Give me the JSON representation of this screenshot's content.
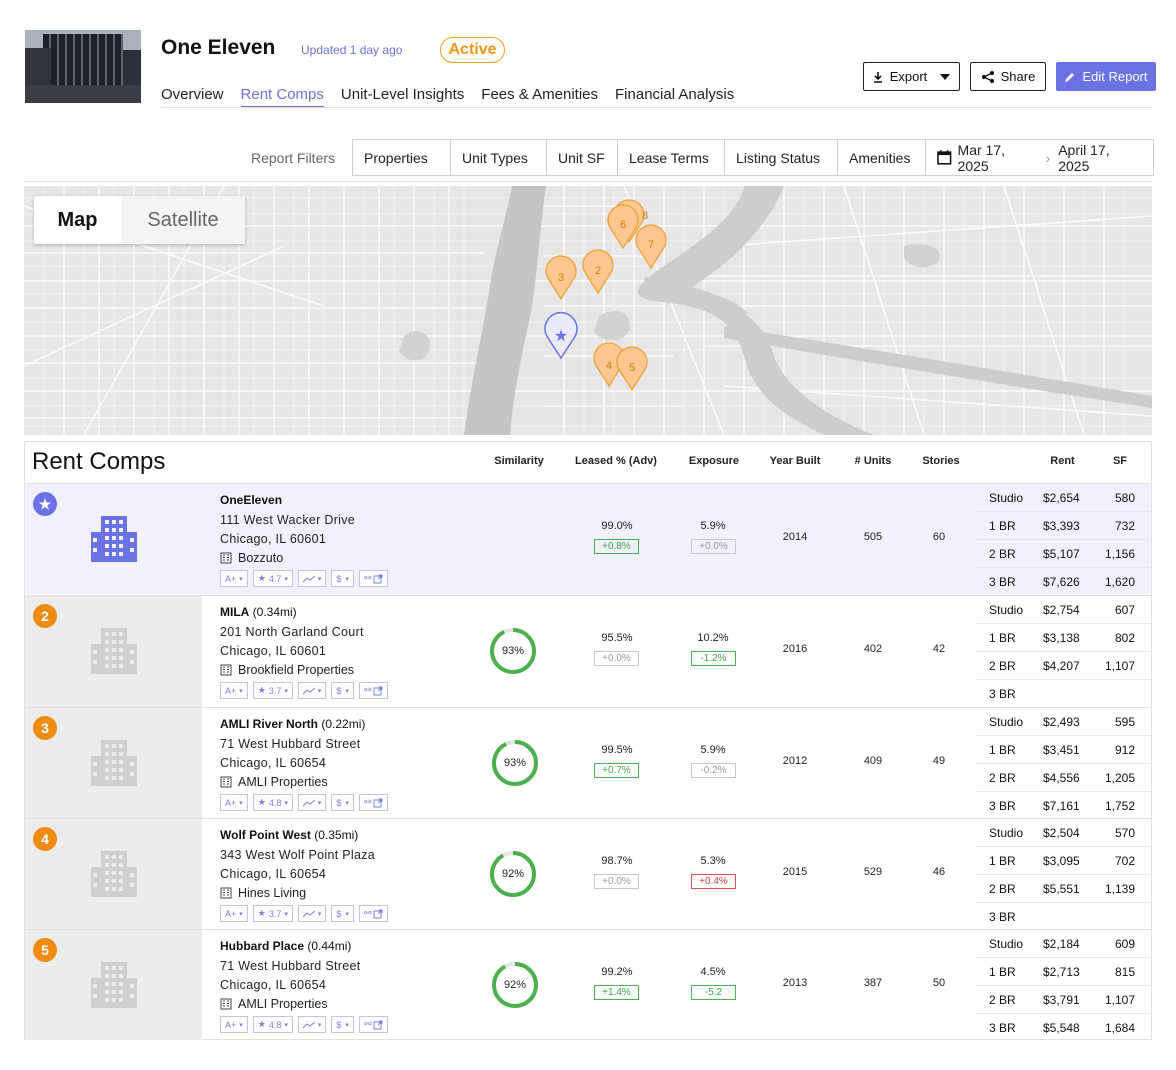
{
  "header": {
    "title": "One Eleven",
    "updated": "Updated 1 day ago",
    "status": "Active",
    "tabs": [
      "Overview",
      "Rent Comps",
      "Unit-Level Insights",
      "Fees & Amenities",
      "Financial Analysis"
    ],
    "selected_tab": "Rent Comps",
    "buttons": {
      "export": "Export",
      "share": "Share",
      "edit": "Edit Report"
    }
  },
  "filters": {
    "label": "Report Filters",
    "items": [
      "Properties",
      "Unit Types",
      "Unit SF",
      "Lease Terms",
      "Listing Status",
      "Amenities"
    ],
    "date_start": "Mar 17, 2025",
    "date_end": "April 17, 2025"
  },
  "map": {
    "modes": [
      "Map",
      "Satellite"
    ],
    "selected": "Map",
    "markers": [
      "6",
      "8",
      "7",
      "3",
      "2",
      "4",
      "5"
    ]
  },
  "rent_comps": {
    "title": "Rent Comps",
    "columns": [
      "Similarity",
      "Leased % (Adv)",
      "Exposure",
      "Year Built",
      "# Units",
      "Stories",
      "Rent",
      "SF"
    ],
    "rows": [
      {
        "badge": "★",
        "name": "OneEleven",
        "distance": "",
        "street": "111 West Wacker Drive",
        "city": "Chicago, IL 60601",
        "manager": "Bozzuto",
        "grade": "A+",
        "rating": "4.7",
        "similarity": "",
        "leased": "99.0%",
        "leased_delta": "+0.8%",
        "exposure": "5.9%",
        "exposure_delta": "+0.0%",
        "year": "2014",
        "units": "505",
        "stories": "60",
        "rents": [
          [
            "Studio",
            "$2,654",
            "580"
          ],
          [
            "1 BR",
            "$3,393",
            "732"
          ],
          [
            "2 BR",
            "$5,107",
            "1,156"
          ],
          [
            "3 BR",
            "$7,626",
            "1,620"
          ]
        ]
      },
      {
        "badge": "2",
        "name": "MILA",
        "distance": "(0.34mi)",
        "street": "201 North Garland Court",
        "city": "Chicago, IL 60601",
        "manager": "Brookfield Properties",
        "grade": "A+",
        "rating": "3.7",
        "similarity": "93%",
        "leased": "95.5%",
        "leased_delta": "+0.0%",
        "exposure": "10.2%",
        "exposure_delta": "-1.2%",
        "year": "2016",
        "units": "402",
        "stories": "42",
        "rents": [
          [
            "Studio",
            "$2,754",
            "607"
          ],
          [
            "1 BR",
            "$3,138",
            "802"
          ],
          [
            "2 BR",
            "$4,207",
            "1,107"
          ],
          [
            "3 BR",
            "",
            ""
          ]
        ]
      },
      {
        "badge": "3",
        "name": "AMLI River North",
        "distance": "(0.22mi)",
        "street": "71 West Hubbard Street",
        "city": "Chicago, IL 60654",
        "manager": "AMLI Properties",
        "grade": "A+",
        "rating": "4.8",
        "similarity": "93%",
        "leased": "99.5%",
        "leased_delta": "+0.7%",
        "exposure": "5.9%",
        "exposure_delta": "-0.2%",
        "year": "2012",
        "units": "409",
        "stories": "49",
        "rents": [
          [
            "Studio",
            "$2,493",
            "595"
          ],
          [
            "1 BR",
            "$3,451",
            "912"
          ],
          [
            "2 BR",
            "$4,556",
            "1,205"
          ],
          [
            "3 BR",
            "$7,161",
            "1,752"
          ]
        ]
      },
      {
        "badge": "4",
        "name": "Wolf Point West",
        "distance": "(0.35mi)",
        "street": "343 West Wolf Point Plaza",
        "city": "Chicago, IL 60654",
        "manager": "Hines Living",
        "grade": "A+",
        "rating": "3.7",
        "similarity": "92%",
        "leased": "98.7%",
        "leased_delta": "+0.0%",
        "exposure": "5.3%",
        "exposure_delta": "+0.4%",
        "year": "2015",
        "units": "529",
        "stories": "46",
        "rents": [
          [
            "Studio",
            "$2,504",
            "570"
          ],
          [
            "1 BR",
            "$3,095",
            "702"
          ],
          [
            "2 BR",
            "$5,551",
            "1,139"
          ],
          [
            "3 BR",
            "",
            ""
          ]
        ]
      },
      {
        "badge": "5",
        "name": "Hubbard Place",
        "distance": "(0.44mi)",
        "street": "71 West Hubbard Street",
        "city": "Chicago, IL 60654",
        "manager": "AMLI Properties",
        "grade": "A+",
        "rating": "4.8",
        "similarity": "92%",
        "leased": "99.2%",
        "leased_delta": "+1.4%",
        "exposure": "4.5%",
        "exposure_delta": "-5.2",
        "year": "2013",
        "units": "387",
        "stories": "50",
        "rents": [
          [
            "Studio",
            "$2,184",
            "609"
          ],
          [
            "1 BR",
            "$2,713",
            "815"
          ],
          [
            "2 BR",
            "$3,791",
            "1,107"
          ],
          [
            "3 BR",
            "$5,548",
            "1,684"
          ]
        ]
      }
    ],
    "chip_dollar": "$",
    "colors": {
      "accent": "#6b72e6",
      "badge": "#f08c12",
      "ring": "#4caf50",
      "active": "#f2a116"
    }
  }
}
